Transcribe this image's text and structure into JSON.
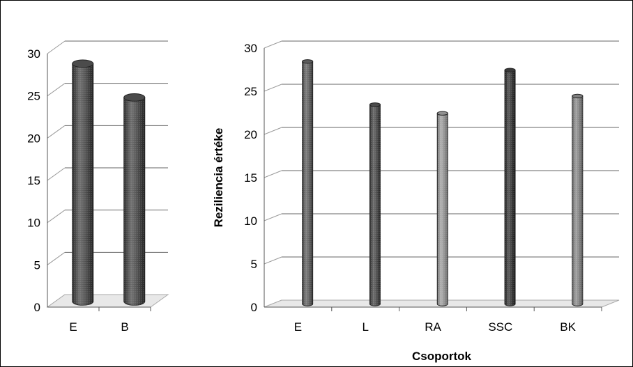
{
  "chart_data": [
    {
      "type": "bar",
      "categories": [
        "E",
        "B"
      ],
      "values": [
        28,
        24
      ],
      "title": "",
      "xlabel": "",
      "ylabel": "",
      "ylim": [
        0,
        30
      ],
      "yticks": [
        "0",
        "5",
        "10",
        "15",
        "20",
        "25",
        "30"
      ],
      "grid": true,
      "style": "3d-cylinder",
      "bar_colors": [
        "#555555",
        "#555555"
      ]
    },
    {
      "type": "bar",
      "categories": [
        "E",
        "L",
        "RA",
        "SSC",
        "BK"
      ],
      "values": [
        28,
        23,
        22,
        27,
        24
      ],
      "title": "",
      "xlabel": "Csoportok",
      "ylabel": "Reziliencia  értéke",
      "ylim": [
        0,
        30
      ],
      "yticks": [
        "0",
        "5",
        "10",
        "15",
        "20",
        "25",
        "30"
      ],
      "grid": true,
      "style": "3d-cylinder",
      "bar_colors": [
        "#666666",
        "#555555",
        "#9a9a9a",
        "#444444",
        "#8a8a8a"
      ]
    }
  ]
}
